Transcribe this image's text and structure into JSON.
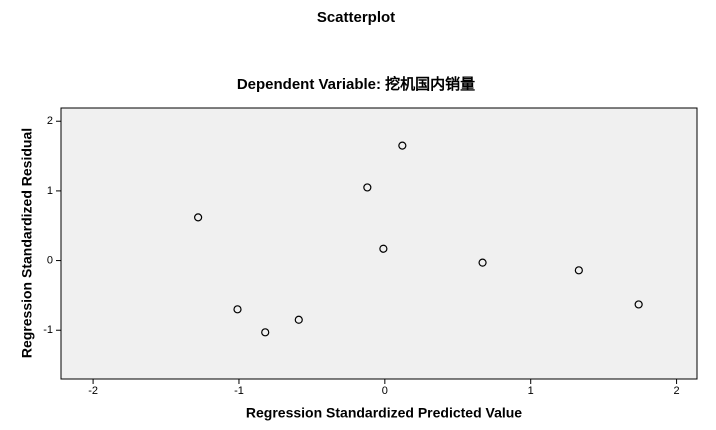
{
  "chart_data": {
    "type": "scatter",
    "title": "Scatterplot",
    "subtitle": "Dependent Variable: 挖机国内销量",
    "x_label": "Regression Standardized Predicted Value",
    "y_label": "Regression Standardized Residual",
    "x": [
      -1.28,
      -1.01,
      -0.82,
      -0.59,
      -0.12,
      -0.01,
      0.12,
      0.67,
      1.33,
      1.74
    ],
    "values": [
      0.62,
      -0.7,
      -1.03,
      -0.85,
      1.05,
      0.17,
      1.65,
      -0.03,
      -0.14,
      -0.63
    ],
    "xlim": [
      -2.22,
      2.14
    ],
    "ylim": [
      -1.7,
      2.19
    ],
    "xticks": [
      -2,
      -1,
      0,
      1,
      2
    ],
    "yticks": [
      -1,
      0,
      1,
      2
    ],
    "color": "#000000",
    "background": "#f0f0f0"
  }
}
